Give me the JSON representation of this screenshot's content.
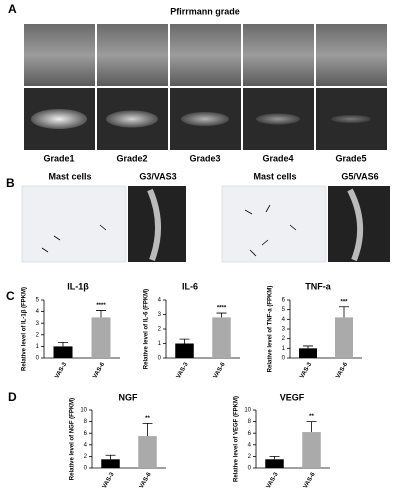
{
  "panel_a": {
    "label": "A",
    "title": "Pfirrmann grade",
    "grades": [
      "Grade1",
      "Grade2",
      "Grade3",
      "Grade4",
      "Grade5"
    ]
  },
  "panel_b": {
    "label": "B",
    "captions": [
      "Mast cells",
      "G3/VAS3",
      "Mast cells",
      "G5/VAS6"
    ]
  },
  "panel_c": {
    "label": "C"
  },
  "panel_d": {
    "label": "D"
  },
  "chart_data": [
    {
      "type": "bar",
      "title": "IL-1β",
      "y_label": "Relative level of IL-1β (FPKM)",
      "categories": [
        "VAS-3",
        "VAS-6"
      ],
      "values": [
        1.0,
        3.5
      ],
      "errors": [
        0.35,
        0.6
      ],
      "colors": [
        "#000000",
        "#aaaaaa"
      ],
      "significance": "****",
      "ylim": [
        0,
        5
      ],
      "yticks": [
        0,
        1,
        2,
        3,
        4,
        5
      ]
    },
    {
      "type": "bar",
      "title": "IL-6",
      "y_label": "Relative level of IL-6 (FPKM)",
      "categories": [
        "VAS-3",
        "VAS-6"
      ],
      "values": [
        1.0,
        2.8
      ],
      "errors": [
        0.3,
        0.3
      ],
      "colors": [
        "#000000",
        "#aaaaaa"
      ],
      "significance": "****",
      "ylim": [
        0,
        4
      ],
      "yticks": [
        0,
        1,
        2,
        3,
        4
      ]
    },
    {
      "type": "bar",
      "title": "TNF-a",
      "y_label": "Relative level of TNF-a (FPKM)",
      "categories": [
        "VAS-3",
        "VAS-6"
      ],
      "values": [
        1.0,
        4.2
      ],
      "errors": [
        0.25,
        1.1
      ],
      "colors": [
        "#000000",
        "#aaaaaa"
      ],
      "significance": "***",
      "ylim": [
        0,
        6
      ],
      "yticks": [
        0,
        1,
        2,
        3,
        4,
        5,
        6
      ]
    },
    {
      "type": "bar",
      "title": "NGF",
      "y_label": "Relative level of NGF (FPKM)",
      "categories": [
        "VAS-3",
        "VAS-6"
      ],
      "values": [
        1.5,
        5.5
      ],
      "errors": [
        0.7,
        2.2
      ],
      "colors": [
        "#000000",
        "#aaaaaa"
      ],
      "significance": "**",
      "ylim": [
        0,
        10
      ],
      "yticks": [
        0,
        2,
        4,
        6,
        8,
        10
      ]
    },
    {
      "type": "bar",
      "title": "VEGF",
      "y_label": "Relative level of VEGF (FPKM)",
      "categories": [
        "VAS-3",
        "VAS-6"
      ],
      "values": [
        1.5,
        6.2
      ],
      "errors": [
        0.5,
        1.8
      ],
      "colors": [
        "#000000",
        "#aaaaaa"
      ],
      "significance": "**",
      "ylim": [
        0,
        10
      ],
      "yticks": [
        0,
        2,
        4,
        6,
        8,
        10
      ]
    }
  ]
}
